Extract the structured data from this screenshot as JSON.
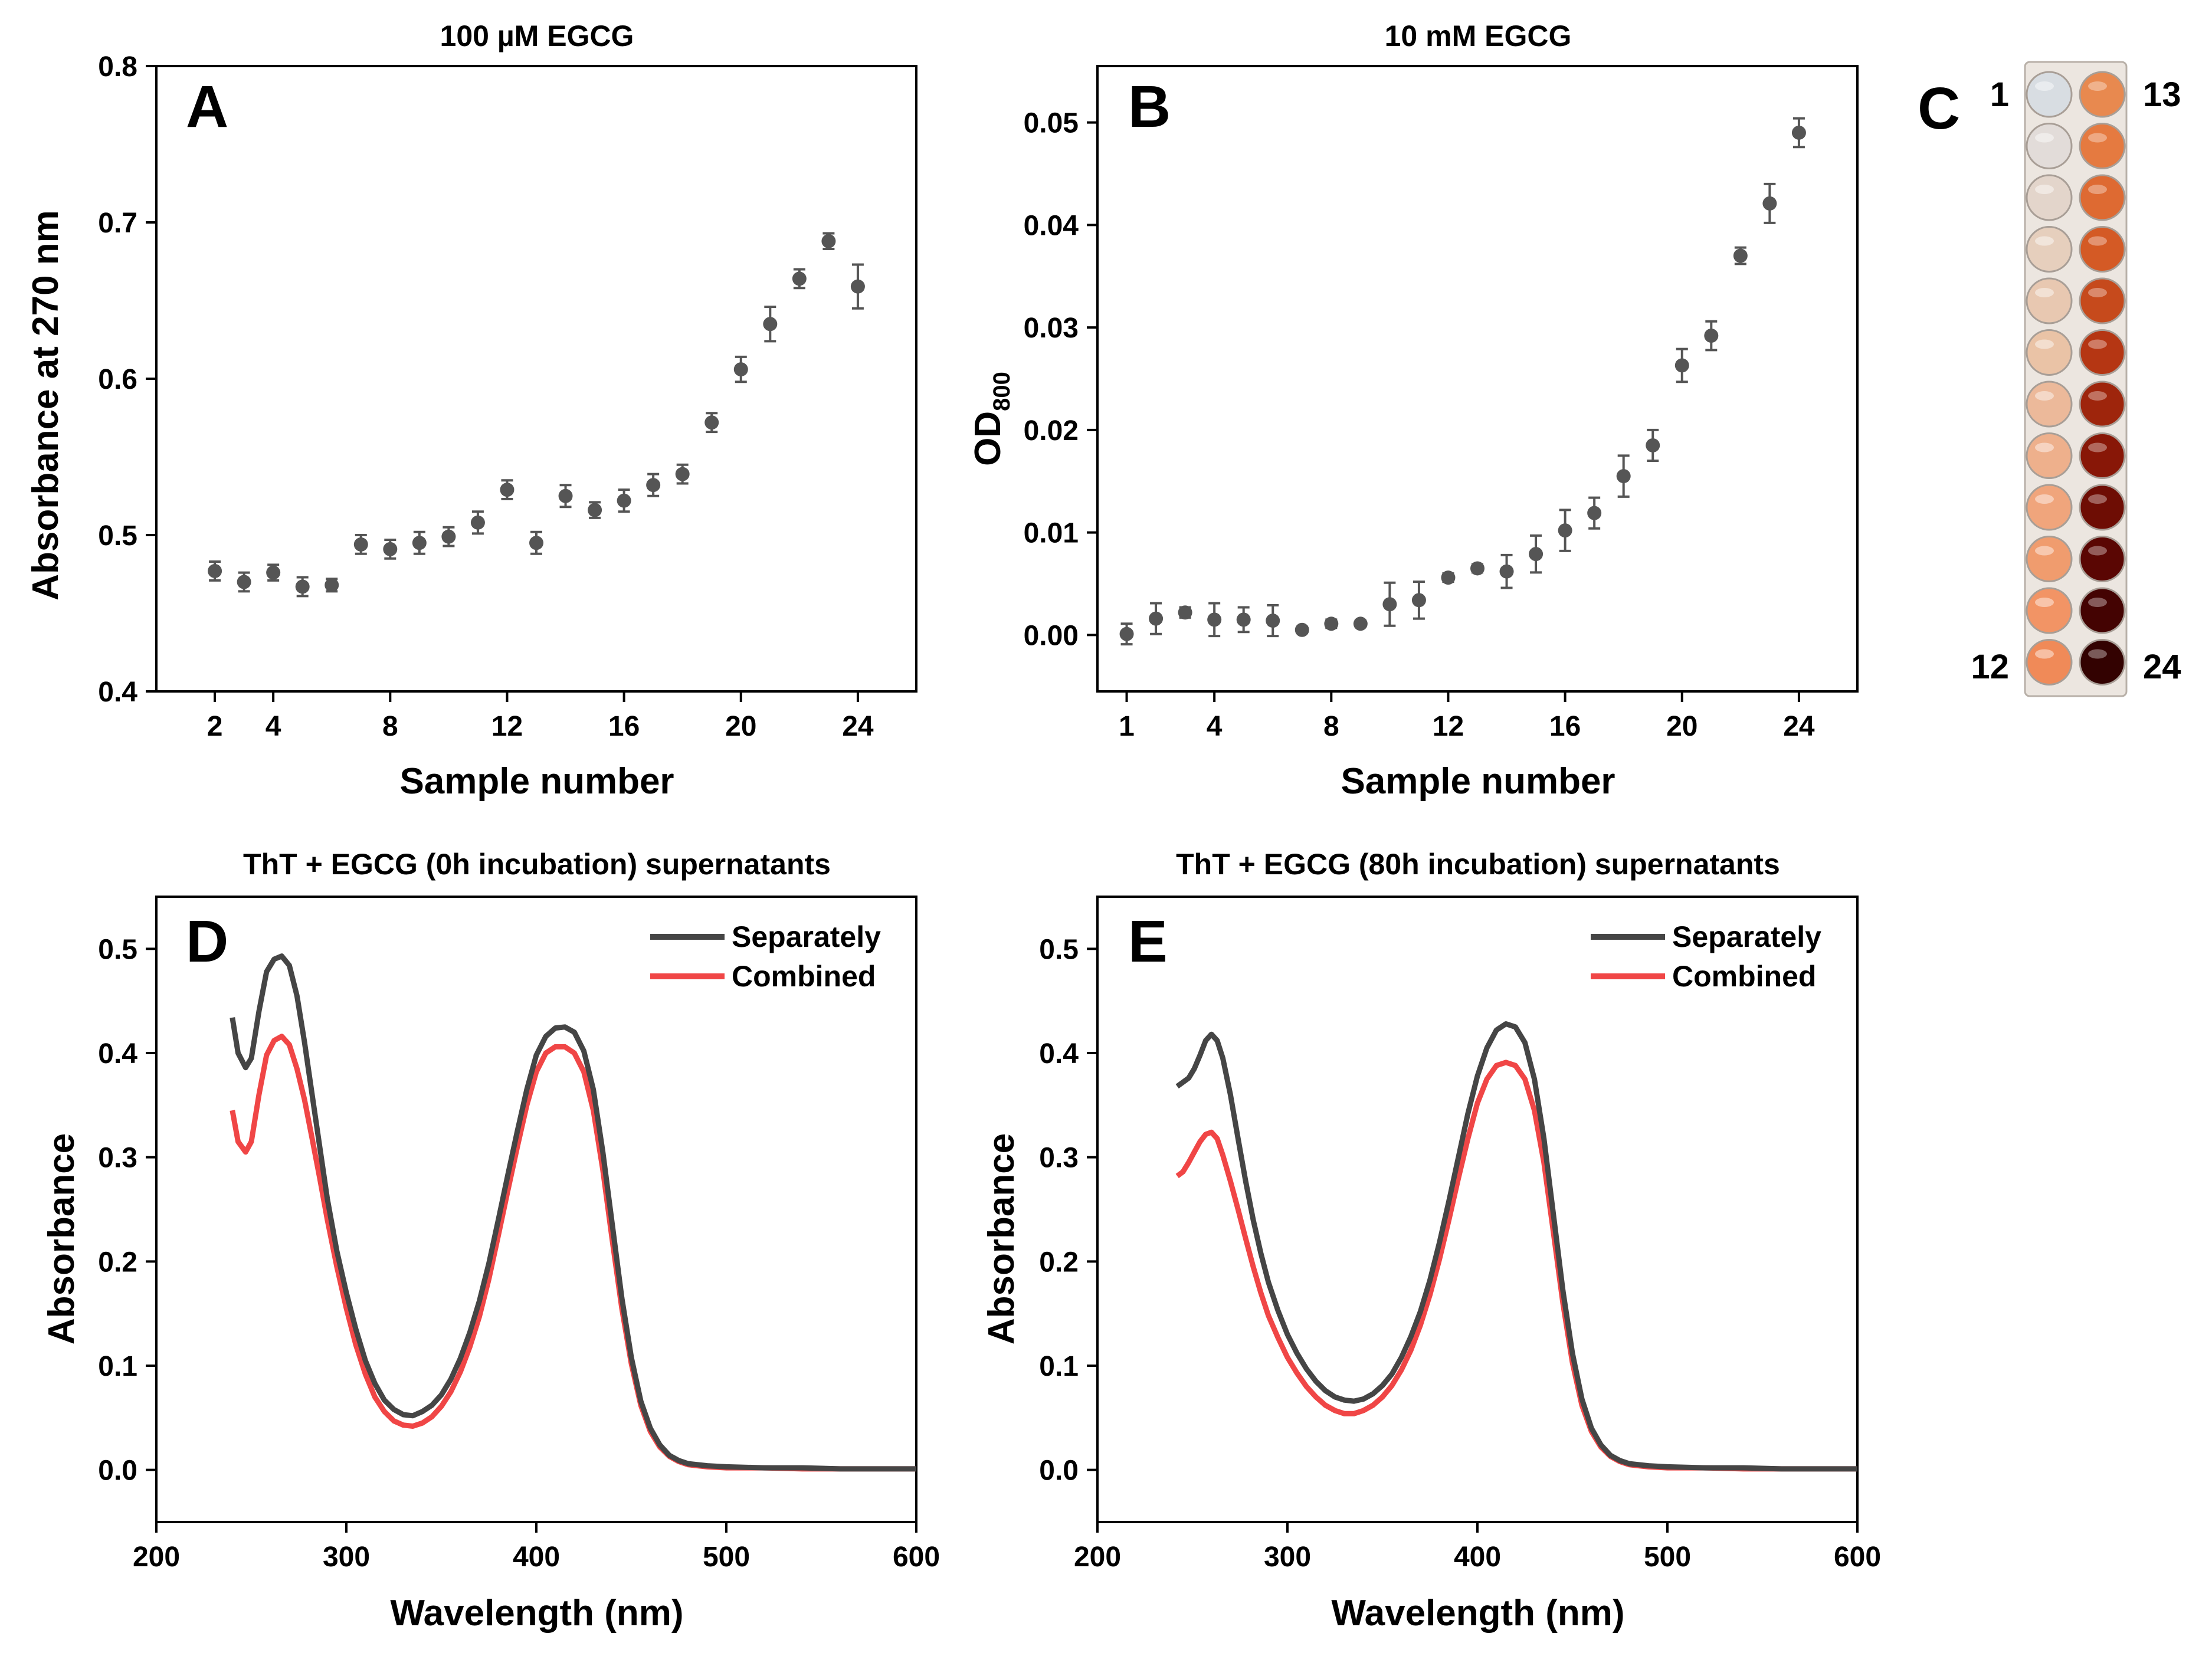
{
  "colors": {
    "marker": "#555555",
    "separately": "#454545",
    "combined": "#f04646",
    "axis": "#000000"
  },
  "chart_data": [
    {
      "id": "A",
      "type": "scatter",
      "panel_letter": "A",
      "title": "100 µM EGCG",
      "xlabel": "Sample number",
      "ylabel": "Absorbance at 270 nm",
      "xlim": [
        0,
        26
      ],
      "ylim": [
        0.4,
        0.8
      ],
      "xticks": [
        2,
        4,
        8,
        12,
        16,
        20,
        24
      ],
      "xtick_labels": [
        "2",
        "4",
        "8",
        "12",
        "16",
        "20",
        "24"
      ],
      "yticks": [
        0.4,
        0.5,
        0.6,
        0.7,
        0.8
      ],
      "ytick_labels": [
        "0.4",
        "0.5",
        "0.6",
        "0.7",
        "0.8"
      ],
      "series": [
        {
          "name": "Absorbance at 270 nm",
          "x": [
            2,
            3,
            4,
            5,
            6,
            7,
            8,
            9,
            10,
            11,
            12,
            13,
            14,
            15,
            16,
            17,
            18,
            19,
            20,
            21,
            22,
            23,
            24
          ],
          "y": [
            0.477,
            0.47,
            0.476,
            0.467,
            0.468,
            0.494,
            0.491,
            0.495,
            0.499,
            0.508,
            0.529,
            0.495,
            0.525,
            0.516,
            0.522,
            0.532,
            0.539,
            0.572,
            0.606,
            0.635,
            0.664,
            0.688,
            0.659
          ],
          "err": [
            0.006,
            0.006,
            0.005,
            0.006,
            0.004,
            0.006,
            0.006,
            0.007,
            0.006,
            0.007,
            0.006,
            0.007,
            0.007,
            0.005,
            0.007,
            0.007,
            0.006,
            0.006,
            0.008,
            0.011,
            0.006,
            0.005,
            0.014
          ]
        }
      ]
    },
    {
      "id": "B",
      "type": "scatter",
      "panel_letter": "B",
      "title": "10 mM EGCG",
      "xlabel": "Sample number",
      "ylabel_main": "OD",
      "ylabel_sub": "800",
      "xlim": [
        0,
        26
      ],
      "ylim": [
        -0.0055,
        0.0555
      ],
      "xticks": [
        1,
        4,
        8,
        12,
        16,
        20,
        24
      ],
      "xtick_labels": [
        "1",
        "4",
        "8",
        "12",
        "16",
        "20",
        "24"
      ],
      "yticks": [
        0.0,
        0.01,
        0.02,
        0.03,
        0.04,
        0.05
      ],
      "ytick_labels": [
        "0.00",
        "0.01",
        "0.02",
        "0.03",
        "0.04",
        "0.05"
      ],
      "series": [
        {
          "name": "OD800",
          "x": [
            1,
            2,
            3,
            4,
            5,
            6,
            7,
            8,
            9,
            10,
            11,
            12,
            13,
            14,
            15,
            16,
            17,
            18,
            19,
            20,
            21,
            22,
            23,
            24
          ],
          "y": [
            0.0001,
            0.0016,
            0.0022,
            0.0015,
            0.0015,
            0.0014,
            0.0005,
            0.0011,
            0.0011,
            0.003,
            0.0034,
            0.0056,
            0.0065,
            0.0062,
            0.0079,
            0.0102,
            0.0119,
            0.0155,
            0.0185,
            0.0263,
            0.0292,
            0.037,
            0.0421,
            0.049
          ],
          "err": [
            0.001,
            0.0015,
            0.0005,
            0.0016,
            0.0012,
            0.0015,
            0.0003,
            0.0004,
            0.0003,
            0.0021,
            0.0018,
            0.0004,
            0.0004,
            0.0016,
            0.0018,
            0.002,
            0.0015,
            0.002,
            0.0015,
            0.0016,
            0.0014,
            0.0008,
            0.0019,
            0.0014
          ]
        }
      ]
    },
    {
      "id": "D",
      "type": "line",
      "panel_letter": "D",
      "title": "ThT + EGCG (0h incubation) supernatants",
      "xlabel": "Wavelength (nm)",
      "ylabel": "Absorbance",
      "xlim": [
        200,
        600
      ],
      "ylim": [
        -0.05,
        0.55
      ],
      "xticks": [
        200,
        300,
        400,
        500,
        600
      ],
      "xtick_labels": [
        "200",
        "300",
        "400",
        "500",
        "600"
      ],
      "yticks": [
        0.0,
        0.1,
        0.2,
        0.3,
        0.4,
        0.5
      ],
      "ytick_labels": [
        "0.0",
        "0.1",
        "0.2",
        "0.3",
        "0.4",
        "0.5"
      ],
      "legend_position": "top-right",
      "series": [
        {
          "name": "Separately",
          "x": [
            240,
            243,
            247,
            250,
            254,
            258,
            262,
            266,
            270,
            274,
            278,
            282,
            286,
            290,
            295,
            300,
            305,
            310,
            315,
            320,
            325,
            330,
            335,
            340,
            345,
            350,
            355,
            360,
            365,
            370,
            375,
            380,
            385,
            390,
            395,
            400,
            405,
            410,
            415,
            420,
            425,
            430,
            435,
            440,
            445,
            450,
            455,
            460,
            465,
            470,
            475,
            480,
            485,
            490,
            500,
            520,
            540,
            560,
            580,
            600
          ],
          "y": [
            0.434,
            0.4,
            0.386,
            0.395,
            0.44,
            0.478,
            0.49,
            0.493,
            0.484,
            0.455,
            0.41,
            0.36,
            0.31,
            0.26,
            0.21,
            0.17,
            0.135,
            0.105,
            0.083,
            0.067,
            0.058,
            0.053,
            0.052,
            0.056,
            0.062,
            0.072,
            0.087,
            0.107,
            0.132,
            0.162,
            0.198,
            0.24,
            0.283,
            0.325,
            0.365,
            0.398,
            0.416,
            0.424,
            0.425,
            0.42,
            0.402,
            0.365,
            0.305,
            0.235,
            0.165,
            0.108,
            0.066,
            0.04,
            0.024,
            0.014,
            0.009,
            0.006,
            0.005,
            0.004,
            0.003,
            0.002,
            0.002,
            0.001,
            0.001,
            0.001
          ]
        },
        {
          "name": "Combined",
          "x": [
            240,
            243,
            247,
            250,
            254,
            258,
            262,
            266,
            270,
            274,
            278,
            282,
            286,
            290,
            295,
            300,
            305,
            310,
            315,
            320,
            325,
            330,
            335,
            340,
            345,
            350,
            355,
            360,
            365,
            370,
            375,
            380,
            385,
            390,
            395,
            400,
            405,
            410,
            415,
            420,
            425,
            430,
            435,
            440,
            445,
            450,
            455,
            460,
            465,
            470,
            475,
            480,
            485,
            490,
            500,
            520,
            540,
            560,
            580,
            600
          ],
          "y": [
            0.345,
            0.315,
            0.305,
            0.315,
            0.36,
            0.398,
            0.412,
            0.416,
            0.408,
            0.385,
            0.355,
            0.318,
            0.28,
            0.24,
            0.195,
            0.155,
            0.12,
            0.092,
            0.07,
            0.056,
            0.047,
            0.043,
            0.042,
            0.045,
            0.051,
            0.061,
            0.075,
            0.094,
            0.118,
            0.147,
            0.183,
            0.225,
            0.268,
            0.31,
            0.35,
            0.382,
            0.4,
            0.406,
            0.406,
            0.4,
            0.382,
            0.345,
            0.288,
            0.22,
            0.155,
            0.102,
            0.062,
            0.037,
            0.022,
            0.013,
            0.008,
            0.005,
            0.004,
            0.003,
            0.002,
            0.002,
            0.001,
            0.001,
            0.001,
            0.001
          ]
        }
      ]
    },
    {
      "id": "E",
      "type": "line",
      "panel_letter": "E",
      "title": "ThT + EGCG (80h incubation) supernatants",
      "xlabel": "Wavelength (nm)",
      "ylabel": "Absorbance",
      "xlim": [
        200,
        600
      ],
      "ylim": [
        -0.05,
        0.55
      ],
      "xticks": [
        200,
        300,
        400,
        500,
        600
      ],
      "xtick_labels": [
        "200",
        "300",
        "400",
        "500",
        "600"
      ],
      "yticks": [
        0.0,
        0.1,
        0.2,
        0.3,
        0.4,
        0.5
      ],
      "ytick_labels": [
        "0.0",
        "0.1",
        "0.2",
        "0.3",
        "0.4",
        "0.5"
      ],
      "legend_position": "top-right",
      "series": [
        {
          "name": "Separately",
          "x": [
            242,
            245,
            248,
            251,
            254,
            257,
            260,
            263,
            266,
            270,
            274,
            278,
            282,
            286,
            290,
            295,
            300,
            305,
            310,
            315,
            320,
            325,
            330,
            335,
            340,
            345,
            350,
            355,
            360,
            365,
            370,
            375,
            380,
            385,
            390,
            395,
            400,
            405,
            410,
            415,
            420,
            425,
            430,
            435,
            440,
            445,
            450,
            455,
            460,
            465,
            470,
            475,
            480,
            485,
            490,
            500,
            520,
            540,
            560,
            580,
            600
          ],
          "y": [
            0.368,
            0.372,
            0.376,
            0.385,
            0.398,
            0.412,
            0.418,
            0.412,
            0.395,
            0.36,
            0.318,
            0.277,
            0.24,
            0.208,
            0.18,
            0.153,
            0.13,
            0.112,
            0.097,
            0.085,
            0.076,
            0.07,
            0.067,
            0.066,
            0.068,
            0.073,
            0.081,
            0.092,
            0.108,
            0.128,
            0.152,
            0.182,
            0.218,
            0.258,
            0.3,
            0.342,
            0.378,
            0.405,
            0.422,
            0.428,
            0.425,
            0.41,
            0.375,
            0.318,
            0.245,
            0.172,
            0.112,
            0.068,
            0.04,
            0.024,
            0.014,
            0.009,
            0.006,
            0.005,
            0.004,
            0.003,
            0.002,
            0.002,
            0.001,
            0.001,
            0.001
          ]
        },
        {
          "name": "Combined",
          "x": [
            242,
            245,
            248,
            251,
            254,
            257,
            260,
            263,
            266,
            270,
            274,
            278,
            282,
            286,
            290,
            295,
            300,
            305,
            310,
            315,
            320,
            325,
            330,
            335,
            340,
            345,
            350,
            355,
            360,
            365,
            370,
            375,
            380,
            385,
            390,
            395,
            400,
            405,
            410,
            415,
            420,
            425,
            430,
            435,
            440,
            445,
            450,
            455,
            460,
            465,
            470,
            475,
            480,
            485,
            490,
            500,
            520,
            540,
            560,
            580,
            600
          ],
          "y": [
            0.282,
            0.286,
            0.295,
            0.305,
            0.315,
            0.322,
            0.324,
            0.318,
            0.302,
            0.277,
            0.25,
            0.222,
            0.195,
            0.17,
            0.148,
            0.127,
            0.108,
            0.093,
            0.08,
            0.07,
            0.062,
            0.057,
            0.054,
            0.054,
            0.057,
            0.062,
            0.07,
            0.081,
            0.096,
            0.115,
            0.139,
            0.168,
            0.202,
            0.24,
            0.28,
            0.318,
            0.352,
            0.375,
            0.388,
            0.391,
            0.388,
            0.375,
            0.345,
            0.295,
            0.228,
            0.16,
            0.103,
            0.062,
            0.037,
            0.022,
            0.013,
            0.008,
            0.005,
            0.004,
            0.003,
            0.002,
            0.002,
            0.001,
            0.001,
            0.001,
            0.001
          ]
        }
      ]
    }
  ],
  "plate": {
    "panel_letter": "C",
    "label_top_left": "1",
    "label_top_right": "13",
    "label_bottom_left": "12",
    "label_bottom_right": "24",
    "left_column_colors": [
      "#d8dde2",
      "#e2dcd9",
      "#e3d5cb",
      "#e6cfbd",
      "#e8c8b1",
      "#eac3a6",
      "#ecb99a",
      "#eeb08c",
      "#f0a57c",
      "#f09c6e",
      "#f29465",
      "#f08a58"
    ],
    "right_column_colors": [
      "#e8894f",
      "#e57a40",
      "#de6a32",
      "#d45a25",
      "#c64a1c",
      "#b53613",
      "#9e250c",
      "#881707",
      "#6e0d04",
      "#5a0603",
      "#440302",
      "#330201"
    ]
  }
}
